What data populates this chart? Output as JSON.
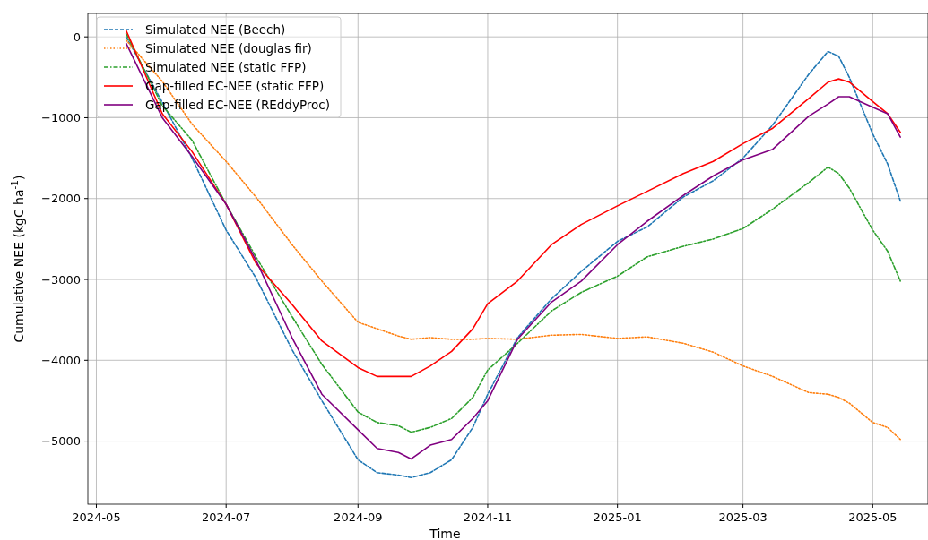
{
  "chart_data": {
    "type": "line",
    "xlabel": "Time",
    "ylabel": "Cumulative NEE (kgC ha$^{-1}$)",
    "x": [
      "2024-05-15",
      "2024-06-01",
      "2024-06-15",
      "2024-07-01",
      "2024-07-15",
      "2024-08-01",
      "2024-08-15",
      "2024-09-01",
      "2024-09-10",
      "2024-09-20",
      "2024-09-26",
      "2024-10-05",
      "2024-10-15",
      "2024-10-25",
      "2024-11-01",
      "2024-11-15",
      "2024-12-01",
      "2024-12-15",
      "2025-01-01",
      "2025-01-15",
      "2025-02-01",
      "2025-02-15",
      "2025-03-01",
      "2025-03-15",
      "2025-04-01",
      "2025-04-10",
      "2025-04-15",
      "2025-04-20",
      "2025-05-01",
      "2025-05-08",
      "2025-05-14"
    ],
    "xlim": [
      "2024-04-27",
      "2025-05-27"
    ],
    "xticks": [
      "2024-05",
      "2024-07",
      "2024-09",
      "2024-11",
      "2025-01",
      "2025-03",
      "2025-05"
    ],
    "ylim": [
      -5780,
      290
    ],
    "yticks": [
      0,
      -1000,
      -2000,
      -3000,
      -4000,
      -5000
    ],
    "grid": true,
    "legend": "top left",
    "marker": "none",
    "series": [
      {
        "name": "Simulated NEE (Beech)",
        "color": "#1f77b4",
        "line_style": "dashed",
        "values": [
          0,
          -810,
          -1500,
          -2390,
          -2980,
          -3870,
          -4500,
          -5230,
          -5390,
          -5420,
          -5450,
          -5390,
          -5230,
          -4830,
          -4420,
          -3720,
          -3240,
          -2900,
          -2530,
          -2350,
          -1980,
          -1780,
          -1500,
          -1090,
          -460,
          -180,
          -240,
          -500,
          -1200,
          -1570,
          -2030
        ]
      },
      {
        "name": "Simulated NEE (douglas fir)",
        "color": "#ff7f0e",
        "line_style": "dotted",
        "values": [
          -40,
          -550,
          -1080,
          -1540,
          -1980,
          -2570,
          -3020,
          -3530,
          -3610,
          -3700,
          -3740,
          -3720,
          -3740,
          -3740,
          -3730,
          -3740,
          -3690,
          -3680,
          -3730,
          -3710,
          -3790,
          -3900,
          -4070,
          -4200,
          -4400,
          -4420,
          -4460,
          -4530,
          -4770,
          -4830,
          -4980
        ]
      },
      {
        "name": "Simulated NEE (static FFP)",
        "color": "#2ca02c",
        "line_style": "dashdot",
        "values": [
          40,
          -850,
          -1280,
          -2070,
          -2720,
          -3460,
          -4050,
          -4640,
          -4770,
          -4810,
          -4890,
          -4830,
          -4720,
          -4460,
          -4120,
          -3790,
          -3390,
          -3160,
          -2960,
          -2720,
          -2590,
          -2500,
          -2370,
          -2130,
          -1800,
          -1610,
          -1690,
          -1870,
          -2390,
          -2650,
          -3020
        ]
      },
      {
        "name": "Gap-filled EC-NEE (static FFP)",
        "color": "#ff0000",
        "line_style": "solid",
        "values": [
          80,
          -950,
          -1420,
          -2070,
          -2800,
          -3310,
          -3760,
          -4090,
          -4200,
          -4200,
          -4200,
          -4070,
          -3890,
          -3610,
          -3300,
          -3020,
          -2570,
          -2320,
          -2090,
          -1910,
          -1690,
          -1540,
          -1320,
          -1130,
          -760,
          -560,
          -520,
          -560,
          -800,
          -950,
          -1180
        ]
      },
      {
        "name": "Gap-filled EC-NEE (REddyProc)",
        "color": "#800080",
        "line_style": "solid",
        "values": [
          -80,
          -1000,
          -1480,
          -2070,
          -2760,
          -3720,
          -4420,
          -4860,
          -5090,
          -5140,
          -5220,
          -5050,
          -4980,
          -4720,
          -4500,
          -3740,
          -3280,
          -3020,
          -2570,
          -2280,
          -1960,
          -1720,
          -1520,
          -1390,
          -980,
          -830,
          -740,
          -740,
          -870,
          -950,
          -1240
        ]
      }
    ]
  }
}
